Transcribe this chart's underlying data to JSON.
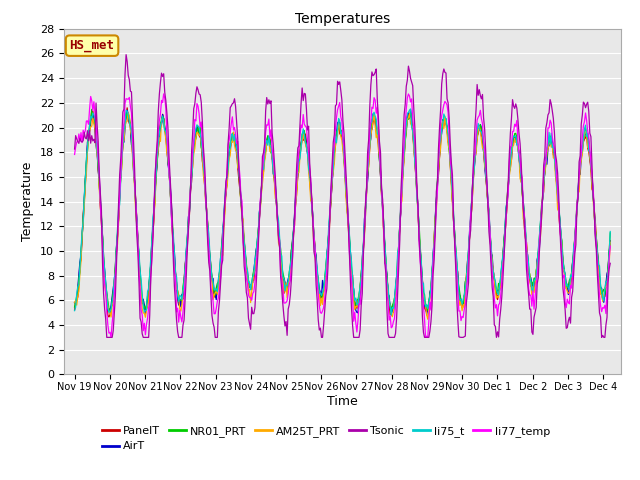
{
  "title": "Temperatures",
  "xlabel": "Time",
  "ylabel": "Temperature",
  "ylim": [
    0,
    28
  ],
  "yticks": [
    0,
    2,
    4,
    6,
    8,
    10,
    12,
    14,
    16,
    18,
    20,
    22,
    24,
    26,
    28
  ],
  "fig_bg_color": "#ffffff",
  "plot_bg_color": "#e8e8e8",
  "grid_color": "#ffffff",
  "annotation_text": "HS_met",
  "annotation_bg": "#ffffaa",
  "annotation_border": "#cc8800",
  "series_colors": {
    "PanelT": "#cc0000",
    "AirT": "#0000cc",
    "NR01_PRT": "#00cc00",
    "AM25T_PRT": "#ffaa00",
    "Tsonic": "#aa00aa",
    "li75_t": "#00cccc",
    "li77_temp": "#ff00ff"
  },
  "legend_order": [
    "PanelT",
    "AirT",
    "NR01_PRT",
    "AM25T_PRT",
    "Tsonic",
    "li75_t",
    "li77_temp"
  ],
  "num_points": 500,
  "num_days": 15.2
}
